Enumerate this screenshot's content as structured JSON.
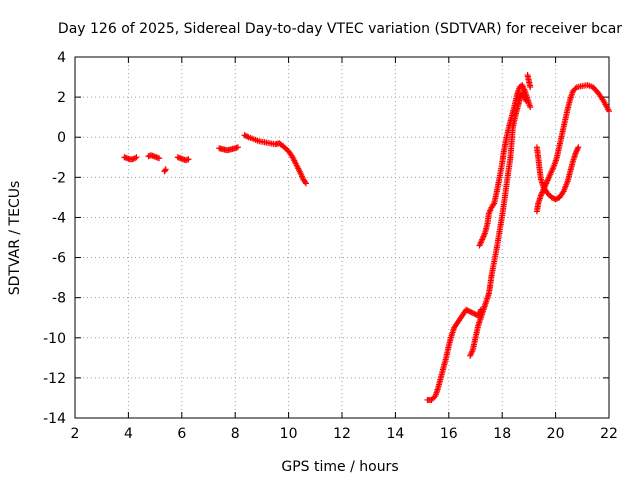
{
  "chart_data": {
    "type": "scatter",
    "title": "Day 126 of 2025, Sidereal Day-to-day VTEC variation (SDTVAR) for receiver bcar",
    "xlabel": "GPS time / hours",
    "ylabel": "SDTVAR / TECUs",
    "xlim": [
      2,
      22
    ],
    "ylim": [
      -14,
      4
    ],
    "xticks": [
      "2",
      "4",
      "6",
      "8",
      "10",
      "12",
      "14",
      "16",
      "18",
      "20",
      "22"
    ],
    "yticks": [
      "4",
      "2",
      "0",
      "-2",
      "-4",
      "-6",
      "-8",
      "-10",
      "-12",
      "-14"
    ],
    "grid": true,
    "marker": "plus",
    "color": "#ff0000",
    "segments": [
      {
        "name": "arc-a",
        "points": [
          [
            3.85,
            -1.0
          ],
          [
            3.95,
            -1.05
          ],
          [
            4.05,
            -1.1
          ],
          [
            4.15,
            -1.1
          ],
          [
            4.25,
            -1.05
          ],
          [
            4.3,
            -1.0
          ]
        ]
      },
      {
        "name": "arc-b",
        "points": [
          [
            4.75,
            -0.95
          ],
          [
            4.85,
            -0.9
          ],
          [
            4.95,
            -0.95
          ],
          [
            5.05,
            -1.0
          ],
          [
            5.15,
            -1.05
          ]
        ]
      },
      {
        "name": "arc-c",
        "points": [
          [
            5.35,
            -1.7
          ],
          [
            5.4,
            -1.6
          ]
        ]
      },
      {
        "name": "arc-d",
        "points": [
          [
            5.85,
            -1.0
          ],
          [
            5.95,
            -1.05
          ],
          [
            6.05,
            -1.1
          ],
          [
            6.15,
            -1.15
          ],
          [
            6.25,
            -1.1
          ]
        ]
      },
      {
        "name": "arc-e",
        "points": [
          [
            7.4,
            -0.55
          ],
          [
            7.55,
            -0.6
          ],
          [
            7.7,
            -0.65
          ],
          [
            7.85,
            -0.6
          ],
          [
            8.0,
            -0.55
          ],
          [
            8.1,
            -0.5
          ]
        ]
      },
      {
        "name": "arc-f",
        "points": [
          [
            8.35,
            0.1
          ],
          [
            8.5,
            0.0
          ],
          [
            8.7,
            -0.1
          ],
          [
            8.9,
            -0.2
          ],
          [
            9.1,
            -0.25
          ],
          [
            9.3,
            -0.3
          ],
          [
            9.5,
            -0.35
          ],
          [
            9.65,
            -0.3
          ],
          [
            9.8,
            -0.45
          ],
          [
            10.0,
            -0.7
          ],
          [
            10.15,
            -1.0
          ],
          [
            10.3,
            -1.4
          ],
          [
            10.45,
            -1.8
          ],
          [
            10.55,
            -2.1
          ],
          [
            10.65,
            -2.3
          ]
        ]
      },
      {
        "name": "arc-g",
        "points": [
          [
            15.2,
            -13.1
          ],
          [
            15.35,
            -13.1
          ],
          [
            15.5,
            -12.9
          ],
          [
            15.6,
            -12.5
          ],
          [
            15.7,
            -12.0
          ],
          [
            15.8,
            -11.5
          ],
          [
            15.9,
            -11.0
          ],
          [
            16.0,
            -10.4
          ],
          [
            16.1,
            -9.9
          ],
          [
            16.2,
            -9.5
          ],
          [
            16.35,
            -9.2
          ],
          [
            16.5,
            -8.9
          ],
          [
            16.65,
            -8.6
          ],
          [
            16.8,
            -8.7
          ],
          [
            16.95,
            -8.8
          ],
          [
            17.1,
            -8.9
          ],
          [
            17.2,
            -8.6
          ]
        ]
      },
      {
        "name": "arc-h",
        "points": [
          [
            16.8,
            -10.9
          ],
          [
            16.9,
            -10.6
          ],
          [
            17.0,
            -10.0
          ],
          [
            17.1,
            -9.4
          ],
          [
            17.2,
            -9.0
          ],
          [
            17.3,
            -8.6
          ],
          [
            17.4,
            -8.2
          ],
          [
            17.5,
            -7.8
          ],
          [
            17.55,
            -7.4
          ],
          [
            17.6,
            -6.9
          ],
          [
            17.7,
            -6.2
          ],
          [
            17.8,
            -5.5
          ],
          [
            17.9,
            -4.7
          ],
          [
            18.0,
            -3.9
          ],
          [
            18.1,
            -3.0
          ],
          [
            18.2,
            -2.0
          ],
          [
            18.3,
            -1.1
          ],
          [
            18.35,
            -0.3
          ],
          [
            18.4,
            0.5
          ],
          [
            18.5,
            1.1
          ],
          [
            18.6,
            1.6
          ],
          [
            18.65,
            1.9
          ],
          [
            18.75,
            2.2
          ],
          [
            18.8,
            2.1
          ],
          [
            18.9,
            1.8
          ]
        ]
      },
      {
        "name": "arc-i",
        "points": [
          [
            17.15,
            -5.4
          ],
          [
            17.25,
            -5.1
          ],
          [
            17.35,
            -4.8
          ],
          [
            17.45,
            -4.3
          ],
          [
            17.5,
            -3.8
          ],
          [
            17.6,
            -3.5
          ],
          [
            17.7,
            -3.3
          ],
          [
            17.8,
            -2.7
          ],
          [
            17.9,
            -2.0
          ],
          [
            18.0,
            -1.3
          ],
          [
            18.05,
            -0.8
          ],
          [
            18.15,
            -0.1
          ],
          [
            18.25,
            0.5
          ],
          [
            18.35,
            1.0
          ],
          [
            18.45,
            1.5
          ],
          [
            18.55,
            2.1
          ],
          [
            18.65,
            2.5
          ],
          [
            18.75,
            2.6
          ],
          [
            18.85,
            2.3
          ],
          [
            18.95,
            1.9
          ],
          [
            19.05,
            1.5
          ]
        ]
      },
      {
        "name": "arc-j",
        "points": [
          [
            18.95,
            3.1
          ],
          [
            19.0,
            2.8
          ],
          [
            19.05,
            2.5
          ]
        ]
      },
      {
        "name": "arc-k",
        "points": [
          [
            19.3,
            -3.7
          ],
          [
            19.35,
            -3.3
          ],
          [
            19.45,
            -2.9
          ],
          [
            19.55,
            -2.6
          ],
          [
            19.65,
            -2.3
          ],
          [
            19.75,
            -2.0
          ],
          [
            19.85,
            -1.7
          ],
          [
            19.95,
            -1.4
          ],
          [
            20.05,
            -1.0
          ],
          [
            20.15,
            -0.4
          ],
          [
            20.25,
            0.2
          ],
          [
            20.35,
            0.8
          ],
          [
            20.45,
            1.4
          ],
          [
            20.55,
            1.9
          ],
          [
            20.65,
            2.3
          ],
          [
            20.8,
            2.5
          ],
          [
            21.0,
            2.55
          ],
          [
            21.2,
            2.6
          ],
          [
            21.4,
            2.5
          ],
          [
            21.6,
            2.2
          ],
          [
            21.8,
            1.8
          ],
          [
            22.0,
            1.3
          ]
        ]
      },
      {
        "name": "arc-l",
        "points": [
          [
            19.3,
            -0.5
          ],
          [
            19.35,
            -1.0
          ],
          [
            19.4,
            -1.6
          ],
          [
            19.45,
            -2.1
          ],
          [
            19.55,
            -2.5
          ],
          [
            19.7,
            -2.8
          ],
          [
            19.85,
            -3.0
          ],
          [
            20.0,
            -3.1
          ],
          [
            20.15,
            -3.0
          ],
          [
            20.3,
            -2.7
          ],
          [
            20.45,
            -2.2
          ],
          [
            20.55,
            -1.7
          ],
          [
            20.65,
            -1.2
          ],
          [
            20.75,
            -0.8
          ],
          [
            20.85,
            -0.5
          ]
        ]
      }
    ]
  }
}
